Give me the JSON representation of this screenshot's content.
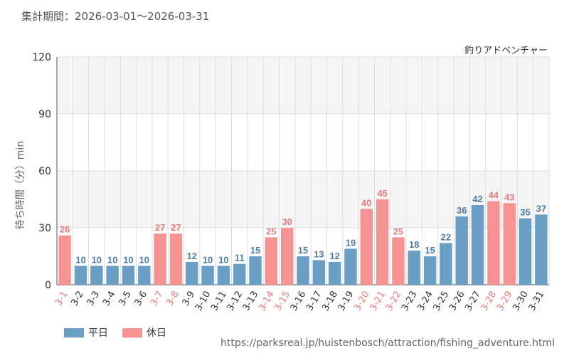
{
  "header": {
    "period": "集計期間：2026-03-01～2026-03-31",
    "attraction": "釣りアドベンチャー"
  },
  "footer": {
    "source": "https://parksreal.jp/huistenbosch/attraction/fishing_adventure.html"
  },
  "colors": {
    "weekday": "#6a9ec5",
    "holiday": "#f59393",
    "band": "#f5f5f5",
    "grid": "#dddddd"
  },
  "chart_data": {
    "type": "bar",
    "ylabel": "待ち時間（分）min",
    "ylim": [
      0,
      120
    ],
    "yticks": [
      0,
      30,
      60,
      90,
      120
    ],
    "grid": true,
    "legend_position": "bottom-left",
    "legend": [
      {
        "key": "weekday",
        "label": "平日"
      },
      {
        "key": "holiday",
        "label": "休日"
      }
    ],
    "categories": [
      "3-1",
      "3-2",
      "3-3",
      "3-4",
      "3-5",
      "3-6",
      "3-7",
      "3-8",
      "3-9",
      "3-10",
      "3-11",
      "3-12",
      "3-13",
      "3-14",
      "3-15",
      "3-16",
      "3-17",
      "3-18",
      "3-19",
      "3-20",
      "3-21",
      "3-22",
      "3-23",
      "3-24",
      "3-25",
      "3-26",
      "3-27",
      "3-28",
      "3-29",
      "3-30",
      "3-31"
    ],
    "values": [
      26,
      10,
      10,
      10,
      10,
      10,
      27,
      27,
      12,
      10,
      10,
      11,
      15,
      25,
      30,
      15,
      13,
      12,
      19,
      40,
      45,
      25,
      18,
      15,
      22,
      36,
      42,
      44,
      43,
      35,
      37
    ],
    "day_type": [
      "holiday",
      "weekday",
      "weekday",
      "weekday",
      "weekday",
      "weekday",
      "holiday",
      "holiday",
      "weekday",
      "weekday",
      "weekday",
      "weekday",
      "weekday",
      "holiday",
      "holiday",
      "weekday",
      "weekday",
      "weekday",
      "weekday",
      "holiday",
      "holiday",
      "holiday",
      "weekday",
      "weekday",
      "weekday",
      "weekday",
      "weekday",
      "holiday",
      "holiday",
      "weekday",
      "weekday"
    ]
  }
}
